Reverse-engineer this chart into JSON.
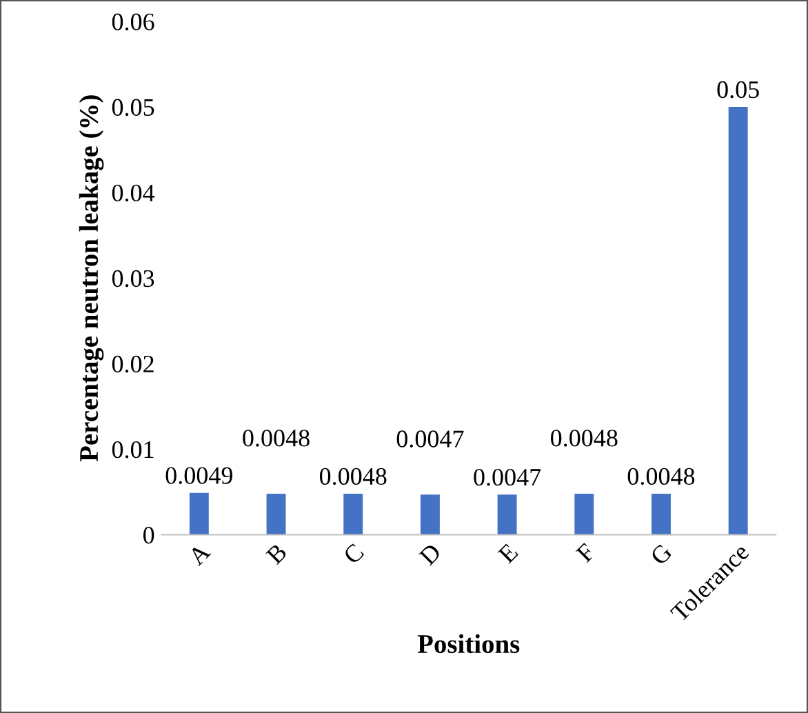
{
  "chart_data": {
    "type": "bar",
    "xlabel": "Positions",
    "ylabel": "Percentage neutron leakage (%)",
    "categories": [
      "A",
      "B",
      "C",
      "D",
      "E",
      "F",
      "G",
      "Tolerance"
    ],
    "values": [
      0.0049,
      0.0048,
      0.0048,
      0.0047,
      0.0047,
      0.0048,
      0.0048,
      0.05
    ],
    "value_labels": [
      "0.0049",
      "0.0048",
      "0.0048",
      "0.0047",
      "0.0047",
      "0.0048",
      "0.0048",
      "0.05"
    ],
    "color": "#4472c4",
    "ylim": [
      0,
      0.06
    ],
    "yticks": [
      0,
      0.01,
      0.02,
      0.03,
      0.04,
      0.05,
      0.06
    ],
    "grid": false,
    "legend": false
  }
}
